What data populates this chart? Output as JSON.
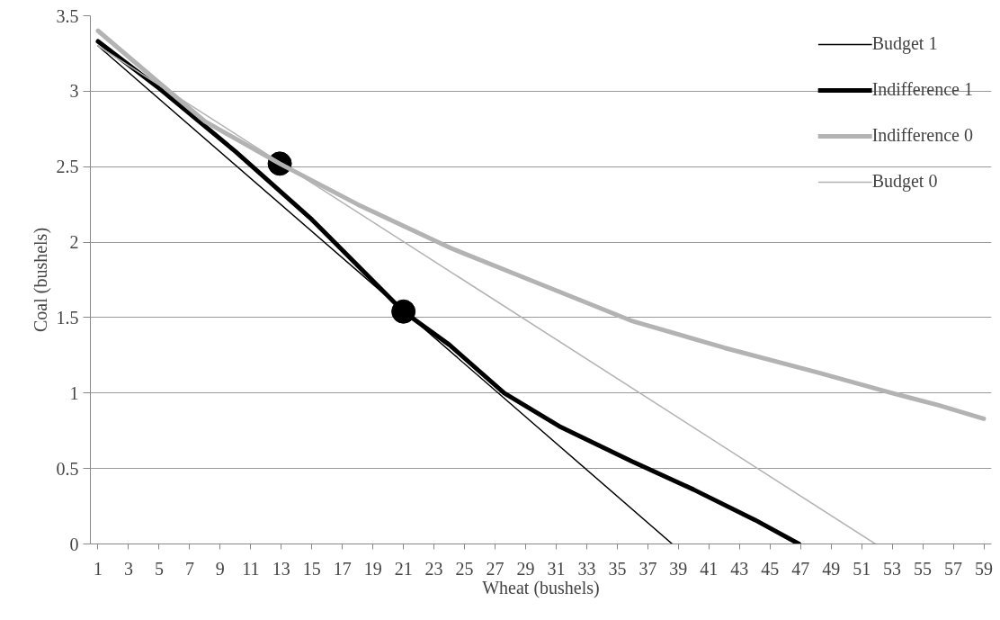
{
  "chart_data": {
    "type": "line",
    "xlabel": "Wheat (bushels)",
    "ylabel": "Coal (bushels)",
    "xlim": [
      0.5,
      59.5
    ],
    "ylim": [
      0,
      3.5
    ],
    "xticks": [
      1,
      3,
      5,
      7,
      9,
      11,
      13,
      15,
      17,
      19,
      21,
      23,
      25,
      27,
      29,
      31,
      33,
      35,
      37,
      39,
      41,
      43,
      45,
      47,
      49,
      51,
      53,
      55,
      57,
      59
    ],
    "yticks": [
      0,
      0.5,
      1,
      1.5,
      2,
      2.5,
      3,
      3.5
    ],
    "grid": "y",
    "legend": "top right",
    "series": [
      {
        "name": "Budget 1",
        "color": "#000000",
        "x": [
          1,
          38.6
        ],
        "values": [
          3.3,
          0
        ]
      },
      {
        "name": "Indifference 1",
        "color": "#000000",
        "x": [
          1,
          5,
          10,
          15,
          21,
          24,
          27.6,
          31.2,
          35.9,
          40,
          44,
          46.9
        ],
        "values": [
          3.33,
          3.02,
          2.6,
          2.15,
          1.54,
          1.32,
          1.0,
          0.78,
          0.55,
          0.36,
          0.16,
          0
        ]
      },
      {
        "name": "Indifference 0",
        "color": "#b3b3b3",
        "x": [
          1,
          4.6,
          8,
          12.9,
          18,
          24.1,
          30,
          35.9,
          42,
          48,
          53,
          56,
          59
        ],
        "values": [
          3.4,
          3.09,
          2.8,
          2.52,
          2.25,
          1.96,
          1.72,
          1.48,
          1.3,
          1.14,
          1.0,
          0.92,
          0.83
        ]
      },
      {
        "name": "Budget 0",
        "color": "#b3b3b3",
        "x": [
          1,
          51.9
        ],
        "values": [
          3.3,
          0
        ]
      },
      {
        "type": "scatter",
        "marker": "circle",
        "color": "#000000",
        "x": [
          12.9,
          21.0
        ],
        "values": [
          2.52,
          1.54
        ]
      }
    ]
  }
}
